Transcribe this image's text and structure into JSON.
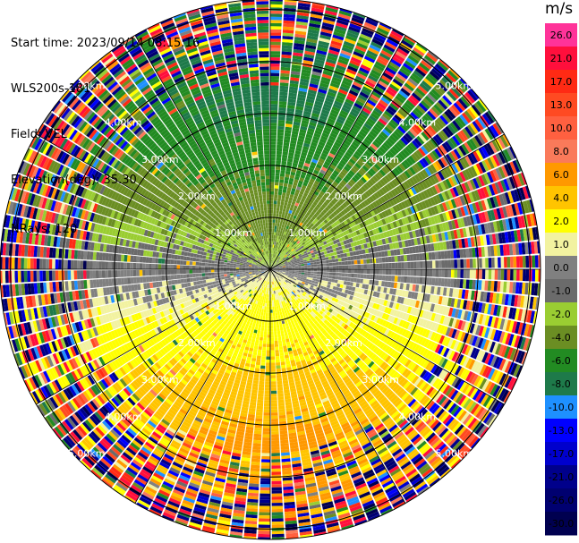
{
  "info": {
    "start_time": "Start time: 2023/09/14 08:15:16",
    "instrument": "WLS200s-181",
    "field": "Field: VEL",
    "elevation": "Elevation(deg): 35.30",
    "nrays": "NRays: 120"
  },
  "colorbar": {
    "unit": "m/s",
    "levels": [
      {
        "label": "26.0",
        "color": "#ff3399"
      },
      {
        "label": "21.0",
        "color": "#ff0f3c"
      },
      {
        "label": "17.0",
        "color": "#ff2a14"
      },
      {
        "label": "13.0",
        "color": "#ff4a22"
      },
      {
        "label": "10.0",
        "color": "#ff6040"
      },
      {
        "label": "8.0",
        "color": "#fa7a5a"
      },
      {
        "label": "6.0",
        "color": "#ff9900"
      },
      {
        "label": "4.0",
        "color": "#ffc400"
      },
      {
        "label": "2.0",
        "color": "#ffff00"
      },
      {
        "label": "1.0",
        "color": "#f2f2a0"
      },
      {
        "label": "0.0",
        "color": "#808080"
      },
      {
        "label": "-1.0",
        "color": "#6b6b6b"
      },
      {
        "label": "-2.0",
        "color": "#9acd32"
      },
      {
        "label": "-4.0",
        "color": "#6b8e23"
      },
      {
        "label": "-6.0",
        "color": "#228b22"
      },
      {
        "label": "-8.0",
        "color": "#1e7a4a"
      },
      {
        "label": "-10.0",
        "color": "#1e90ff"
      },
      {
        "label": "-13.0",
        "color": "#0000ff"
      },
      {
        "label": "-17.0",
        "color": "#0000cd"
      },
      {
        "label": "-21.0",
        "color": "#00008b"
      },
      {
        "label": "-26.0",
        "color": "#000070"
      },
      {
        "label": "-30.0",
        "color": "#000050"
      }
    ]
  },
  "chart_data": {
    "type": "heatmap",
    "projection": "polar-ppi",
    "field": "VEL",
    "units": "m/s",
    "nrays": 120,
    "range_rings_km": [
      1.0,
      2.0,
      3.0,
      4.0,
      5.0
    ],
    "ring_labels": [
      "1.00km",
      "2.00km",
      "3.00km",
      "4.00km",
      "5.00km"
    ],
    "max_range_km": 5.2,
    "pattern": {
      "positive_quadrant_center_deg": 180,
      "negative_quadrant_center_deg": 0,
      "peak_speed_ms": 6.0,
      "noisy_beyond_km": 3.5
    }
  }
}
